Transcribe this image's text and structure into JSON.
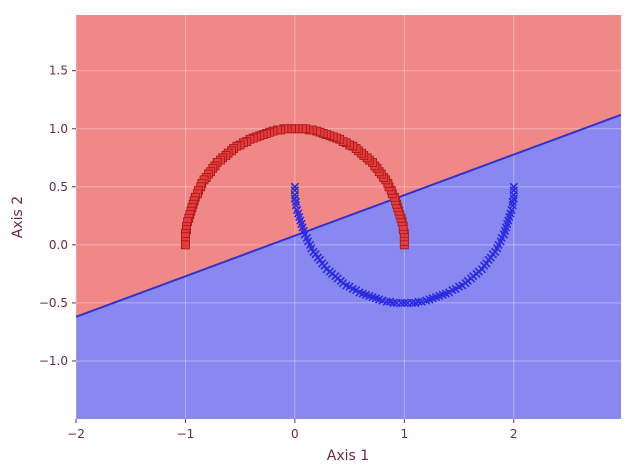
{
  "chart_data": {
    "type": "scatter",
    "title": "",
    "xlabel": "Axis 1",
    "ylabel": "Axis 2",
    "xlim": [
      -2.0,
      2.98
    ],
    "ylim": [
      -1.5,
      1.98
    ],
    "xticks": [
      -2,
      -1,
      0,
      1,
      2
    ],
    "yticks": [
      -1.0,
      -0.5,
      0.0,
      0.5,
      1.0,
      1.5
    ],
    "xtick_labels": [
      "−2",
      "−1",
      "0",
      "1",
      "2"
    ],
    "ytick_labels": [
      "−1.0",
      "−0.5",
      "0.0",
      "0.5",
      "1.0",
      "1.5"
    ],
    "grid": true,
    "legend": "none",
    "decision_boundary": {
      "description": "linear boundary separating two half-planes",
      "x": [
        -2.0,
        2.98
      ],
      "y": [
        -0.62,
        1.12
      ],
      "region_above_color": "#f08888",
      "region_below_color": "#8888f0",
      "boundary_color": "#3333cc"
    },
    "series": [
      {
        "marker": "square",
        "color": "#e83a3a",
        "edge_color": "#a01818",
        "points": [
          [
            1.0,
            0.0
          ],
          [
            1.0,
            0.03
          ],
          [
            1.0,
            0.07
          ],
          [
            1.0,
            0.1
          ],
          [
            0.99,
            0.13
          ],
          [
            0.99,
            0.16
          ],
          [
            0.98,
            0.2
          ],
          [
            0.97,
            0.23
          ],
          [
            0.96,
            0.26
          ],
          [
            0.95,
            0.29
          ],
          [
            0.94,
            0.32
          ],
          [
            0.93,
            0.35
          ],
          [
            0.92,
            0.38
          ],
          [
            0.91,
            0.41
          ],
          [
            0.89,
            0.44
          ],
          [
            0.88,
            0.47
          ],
          [
            0.86,
            0.5
          ],
          [
            0.85,
            0.53
          ],
          [
            0.83,
            0.56
          ],
          [
            0.81,
            0.58
          ],
          [
            0.79,
            0.61
          ],
          [
            0.77,
            0.63
          ],
          [
            0.75,
            0.66
          ],
          [
            0.73,
            0.68
          ],
          [
            0.71,
            0.71
          ],
          [
            0.68,
            0.73
          ],
          [
            0.66,
            0.75
          ],
          [
            0.63,
            0.77
          ],
          [
            0.61,
            0.79
          ],
          [
            0.58,
            0.81
          ],
          [
            0.56,
            0.83
          ],
          [
            0.53,
            0.85
          ],
          [
            0.5,
            0.86
          ],
          [
            0.47,
            0.88
          ],
          [
            0.44,
            0.89
          ],
          [
            0.41,
            0.91
          ],
          [
            0.38,
            0.92
          ],
          [
            0.35,
            0.93
          ],
          [
            0.32,
            0.94
          ],
          [
            0.29,
            0.95
          ],
          [
            0.26,
            0.96
          ],
          [
            0.23,
            0.97
          ],
          [
            0.2,
            0.98
          ],
          [
            0.16,
            0.99
          ],
          [
            0.13,
            0.99
          ],
          [
            0.1,
            1.0
          ],
          [
            0.07,
            1.0
          ],
          [
            0.03,
            1.0
          ],
          [
            0.0,
            1.0
          ],
          [
            -0.03,
            1.0
          ],
          [
            -0.07,
            1.0
          ],
          [
            -0.1,
            1.0
          ],
          [
            -0.13,
            0.99
          ],
          [
            -0.16,
            0.99
          ],
          [
            -0.2,
            0.98
          ],
          [
            -0.23,
            0.97
          ],
          [
            -0.26,
            0.96
          ],
          [
            -0.29,
            0.95
          ],
          [
            -0.32,
            0.94
          ],
          [
            -0.35,
            0.93
          ],
          [
            -0.38,
            0.92
          ],
          [
            -0.41,
            0.91
          ],
          [
            -0.44,
            0.89
          ],
          [
            -0.47,
            0.88
          ],
          [
            -0.5,
            0.86
          ],
          [
            -0.53,
            0.85
          ],
          [
            -0.56,
            0.83
          ],
          [
            -0.58,
            0.81
          ],
          [
            -0.61,
            0.79
          ],
          [
            -0.63,
            0.77
          ],
          [
            -0.66,
            0.75
          ],
          [
            -0.68,
            0.73
          ],
          [
            -0.71,
            0.71
          ],
          [
            -0.73,
            0.68
          ],
          [
            -0.75,
            0.66
          ],
          [
            -0.77,
            0.63
          ],
          [
            -0.79,
            0.61
          ],
          [
            -0.81,
            0.58
          ],
          [
            -0.83,
            0.56
          ],
          [
            -0.85,
            0.53
          ],
          [
            -0.86,
            0.5
          ],
          [
            -0.88,
            0.47
          ],
          [
            -0.89,
            0.44
          ],
          [
            -0.91,
            0.41
          ],
          [
            -0.92,
            0.38
          ],
          [
            -0.93,
            0.35
          ],
          [
            -0.94,
            0.32
          ],
          [
            -0.95,
            0.29
          ],
          [
            -0.96,
            0.26
          ],
          [
            -0.97,
            0.23
          ],
          [
            -0.98,
            0.2
          ],
          [
            -0.99,
            0.16
          ],
          [
            -0.99,
            0.13
          ],
          [
            -1.0,
            0.1
          ],
          [
            -1.0,
            0.07
          ],
          [
            -1.0,
            0.03
          ],
          [
            -1.0,
            0.0
          ]
        ]
      },
      {
        "marker": "x",
        "color": "#2a2ae0",
        "points": [
          [
            0.0,
            0.5
          ],
          [
            0.0,
            0.47
          ],
          [
            0.0,
            0.43
          ],
          [
            0.0,
            0.4
          ],
          [
            0.01,
            0.37
          ],
          [
            0.01,
            0.34
          ],
          [
            0.02,
            0.3
          ],
          [
            0.03,
            0.27
          ],
          [
            0.04,
            0.24
          ],
          [
            0.05,
            0.21
          ],
          [
            0.06,
            0.18
          ],
          [
            0.07,
            0.15
          ],
          [
            0.08,
            0.12
          ],
          [
            0.09,
            0.09
          ],
          [
            0.11,
            0.06
          ],
          [
            0.12,
            0.03
          ],
          [
            0.14,
            0.0
          ],
          [
            0.15,
            -0.03
          ],
          [
            0.17,
            -0.06
          ],
          [
            0.19,
            -0.08
          ],
          [
            0.21,
            -0.11
          ],
          [
            0.23,
            -0.13
          ],
          [
            0.25,
            -0.16
          ],
          [
            0.27,
            -0.18
          ],
          [
            0.29,
            -0.21
          ],
          [
            0.32,
            -0.23
          ],
          [
            0.34,
            -0.25
          ],
          [
            0.37,
            -0.27
          ],
          [
            0.39,
            -0.29
          ],
          [
            0.42,
            -0.31
          ],
          [
            0.44,
            -0.33
          ],
          [
            0.47,
            -0.35
          ],
          [
            0.5,
            -0.36
          ],
          [
            0.53,
            -0.38
          ],
          [
            0.56,
            -0.39
          ],
          [
            0.59,
            -0.41
          ],
          [
            0.62,
            -0.42
          ],
          [
            0.65,
            -0.43
          ],
          [
            0.68,
            -0.44
          ],
          [
            0.71,
            -0.45
          ],
          [
            0.74,
            -0.46
          ],
          [
            0.77,
            -0.47
          ],
          [
            0.8,
            -0.48
          ],
          [
            0.84,
            -0.49
          ],
          [
            0.87,
            -0.49
          ],
          [
            0.9,
            -0.5
          ],
          [
            0.93,
            -0.5
          ],
          [
            0.97,
            -0.5
          ],
          [
            1.0,
            -0.5
          ],
          [
            1.03,
            -0.5
          ],
          [
            1.07,
            -0.5
          ],
          [
            1.1,
            -0.5
          ],
          [
            1.13,
            -0.49
          ],
          [
            1.16,
            -0.49
          ],
          [
            1.2,
            -0.48
          ],
          [
            1.23,
            -0.47
          ],
          [
            1.26,
            -0.46
          ],
          [
            1.29,
            -0.45
          ],
          [
            1.32,
            -0.44
          ],
          [
            1.35,
            -0.43
          ],
          [
            1.38,
            -0.42
          ],
          [
            1.41,
            -0.41
          ],
          [
            1.44,
            -0.39
          ],
          [
            1.47,
            -0.38
          ],
          [
            1.5,
            -0.36
          ],
          [
            1.53,
            -0.35
          ],
          [
            1.56,
            -0.33
          ],
          [
            1.58,
            -0.31
          ],
          [
            1.61,
            -0.29
          ],
          [
            1.63,
            -0.27
          ],
          [
            1.66,
            -0.25
          ],
          [
            1.68,
            -0.23
          ],
          [
            1.71,
            -0.21
          ],
          [
            1.73,
            -0.18
          ],
          [
            1.75,
            -0.16
          ],
          [
            1.77,
            -0.13
          ],
          [
            1.79,
            -0.11
          ],
          [
            1.81,
            -0.08
          ],
          [
            1.83,
            -0.06
          ],
          [
            1.85,
            -0.03
          ],
          [
            1.86,
            0.0
          ],
          [
            1.88,
            0.03
          ],
          [
            1.89,
            0.06
          ],
          [
            1.91,
            0.09
          ],
          [
            1.92,
            0.12
          ],
          [
            1.93,
            0.15
          ],
          [
            1.94,
            0.18
          ],
          [
            1.95,
            0.21
          ],
          [
            1.96,
            0.24
          ],
          [
            1.97,
            0.27
          ],
          [
            1.98,
            0.3
          ],
          [
            1.99,
            0.34
          ],
          [
            1.99,
            0.37
          ],
          [
            2.0,
            0.4
          ],
          [
            2.0,
            0.43
          ],
          [
            2.0,
            0.47
          ],
          [
            2.0,
            0.5
          ]
        ]
      }
    ]
  }
}
